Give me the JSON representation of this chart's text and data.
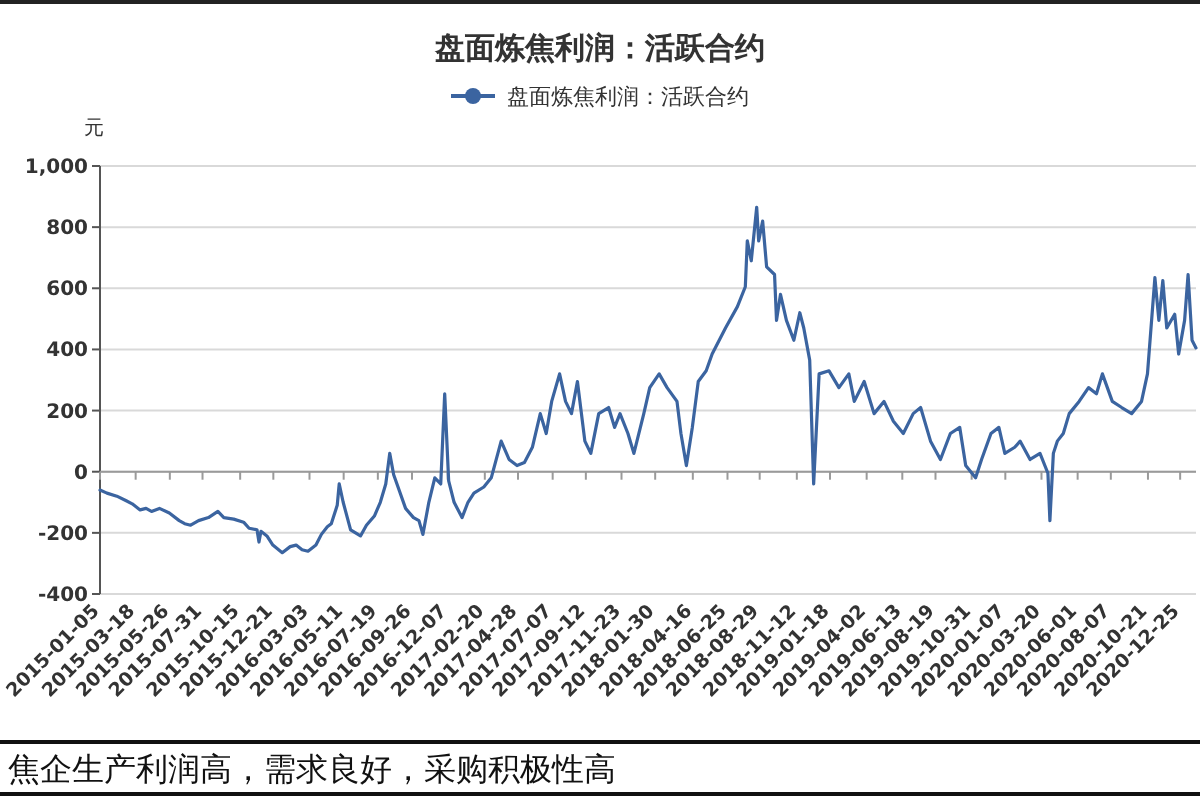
{
  "chart_data": {
    "type": "line",
    "title": "盘面炼焦利润：活跃合约",
    "ylabel": "元",
    "x": [
      "2015-01-05",
      "2015-01-19",
      "2015-02-08",
      "2015-02-27",
      "2015-03-11",
      "2015-03-27",
      "2015-04-08",
      "2015-04-19",
      "2015-05-05",
      "2015-05-25",
      "2015-06-14",
      "2015-06-25",
      "2015-07-07",
      "2015-07-23",
      "2015-08-12",
      "2015-08-31",
      "2015-09-12",
      "2015-10-02",
      "2015-10-22",
      "2015-11-02",
      "2015-11-18",
      "2015-11-22",
      "2015-11-26",
      "2015-12-08",
      "2015-12-20",
      "2016-01-08",
      "2016-01-24",
      "2016-02-05",
      "2016-02-17",
      "2016-02-29",
      "2016-03-16",
      "2016-03-27",
      "2016-04-08",
      "2016-04-16",
      "2016-04-28",
      "2016-05-02",
      "2016-05-10",
      "2016-05-25",
      "2016-06-14",
      "2016-06-26",
      "2016-07-12",
      "2016-07-24",
      "2016-08-04",
      "2016-08-12",
      "2016-08-20",
      "2016-09-01",
      "2016-09-13",
      "2016-09-29",
      "2016-10-10",
      "2016-10-18",
      "2016-10-30",
      "2016-11-11",
      "2016-11-23",
      "2016-12-01",
      "2016-12-09",
      "2016-12-20",
      "2017-01-05",
      "2017-01-17",
      "2017-01-29",
      "2017-02-18",
      "2017-03-05",
      "2017-03-25",
      "2017-04-10",
      "2017-04-26",
      "2017-05-11",
      "2017-05-27",
      "2017-06-12",
      "2017-06-24",
      "2017-07-05",
      "2017-07-21",
      "2017-08-02",
      "2017-08-14",
      "2017-08-26",
      "2017-09-10",
      "2017-09-22",
      "2017-10-08",
      "2017-10-28",
      "2017-11-09",
      "2017-11-20",
      "2017-12-06",
      "2017-12-18",
      "2018-01-07",
      "2018-01-19",
      "2018-02-07",
      "2018-02-23",
      "2018-03-15",
      "2018-03-23",
      "2018-04-03",
      "2018-04-15",
      "2018-04-27",
      "2018-05-13",
      "2018-05-25",
      "2018-06-21",
      "2018-07-15",
      "2018-07-31",
      "2018-08-04",
      "2018-08-12",
      "2018-08-23",
      "2018-08-27",
      "2018-09-04",
      "2018-09-12",
      "2018-09-28",
      "2018-10-02",
      "2018-10-10",
      "2018-10-22",
      "2018-11-06",
      "2018-11-18",
      "2018-11-26",
      "2018-12-08",
      "2018-12-16",
      "2018-12-27",
      "2019-01-16",
      "2019-02-05",
      "2019-02-25",
      "2019-03-08",
      "2019-03-28",
      "2019-04-17",
      "2019-05-07",
      "2019-05-26",
      "2019-06-15",
      "2019-07-05",
      "2019-07-20",
      "2019-08-09",
      "2019-08-29",
      "2019-09-18",
      "2019-10-07",
      "2019-10-19",
      "2019-11-08",
      "2019-11-20",
      "2019-12-09",
      "2019-12-25",
      "2020-01-06",
      "2020-01-26",
      "2020-02-06",
      "2020-02-26",
      "2020-03-17",
      "2020-04-02",
      "2020-04-06",
      "2020-04-13",
      "2020-04-21",
      "2020-05-03",
      "2020-05-15",
      "2020-06-04",
      "2020-06-23",
      "2020-07-09",
      "2020-07-21",
      "2020-08-10",
      "2020-08-29",
      "2020-09-18",
      "2020-10-08",
      "2020-10-20",
      "2020-11-04",
      "2020-11-12",
      "2020-11-20",
      "2020-11-28",
      "2020-12-14",
      "2020-12-22",
      "2021-01-03",
      "2021-01-10",
      "2021-01-18",
      "2021-01-26"
    ],
    "series": [
      {
        "name": "盘面炼焦利润：活跃合约",
        "color": "#3b64a0",
        "values": [
          -60,
          -70,
          -80,
          -95,
          -105,
          -125,
          -120,
          -130,
          -120,
          -135,
          -160,
          -170,
          -175,
          -160,
          -150,
          -130,
          -150,
          -155,
          -165,
          -185,
          -190,
          -230,
          -195,
          -210,
          -240,
          -265,
          -245,
          -240,
          -255,
          -260,
          -240,
          -205,
          -180,
          -170,
          -110,
          -40,
          -100,
          -190,
          -210,
          -175,
          -145,
          -100,
          -40,
          60,
          -10,
          -65,
          -120,
          -150,
          -160,
          -205,
          -100,
          -20,
          -40,
          255,
          -30,
          -100,
          -150,
          -100,
          -70,
          -50,
          -20,
          100,
          40,
          20,
          30,
          80,
          190,
          125,
          230,
          320,
          230,
          190,
          295,
          100,
          60,
          190,
          210,
          145,
          190,
          125,
          60,
          190,
          275,
          320,
          275,
          230,
          125,
          20,
          145,
          295,
          330,
          385,
          470,
          540,
          605,
          755,
          690,
          865,
          755,
          820,
          670,
          645,
          495,
          580,
          495,
          430,
          520,
          470,
          365,
          -40,
          320,
          330,
          275,
          320,
          230,
          295,
          190,
          230,
          165,
          125,
          190,
          210,
          100,
          40,
          125,
          145,
          20,
          -20,
          40,
          125,
          145,
          60,
          80,
          100,
          40,
          60,
          -5,
          -160,
          60,
          100,
          125,
          190,
          230,
          275,
          255,
          320,
          230,
          210,
          190,
          230,
          320,
          635,
          495,
          625,
          470,
          515,
          385,
          495,
          645,
          430,
          405
        ]
      }
    ],
    "xlim": [
      "2015-01-05",
      "2021-01-26"
    ],
    "xticks": [
      "2015-01-05",
      "2015-03-18",
      "2015-05-26",
      "2015-07-31",
      "2015-10-15",
      "2015-12-21",
      "2016-03-03",
      "2016-05-11",
      "2016-07-19",
      "2016-09-26",
      "2016-12-07",
      "2017-02-20",
      "2017-04-28",
      "2017-07-07",
      "2017-09-12",
      "2017-11-23",
      "2018-01-30",
      "2018-04-16",
      "2018-06-25",
      "2018-08-29",
      "2018-11-12",
      "2019-01-18",
      "2019-04-02",
      "2019-06-13",
      "2019-08-19",
      "2019-10-31",
      "2020-01-07",
      "2020-03-20",
      "2020-06-01",
      "2020-08-07",
      "2020-10-21",
      "2020-12-25"
    ],
    "ylim": [
      -400,
      1000
    ],
    "yticks": [
      -400,
      -200,
      0,
      200,
      400,
      600,
      800,
      {
        "value": 1000,
        "label": "1,000"
      }
    ],
    "grid": "y",
    "legend": "top",
    "annotations": [
      "焦企生产利润高，需求良好，采购积极性高"
    ]
  }
}
